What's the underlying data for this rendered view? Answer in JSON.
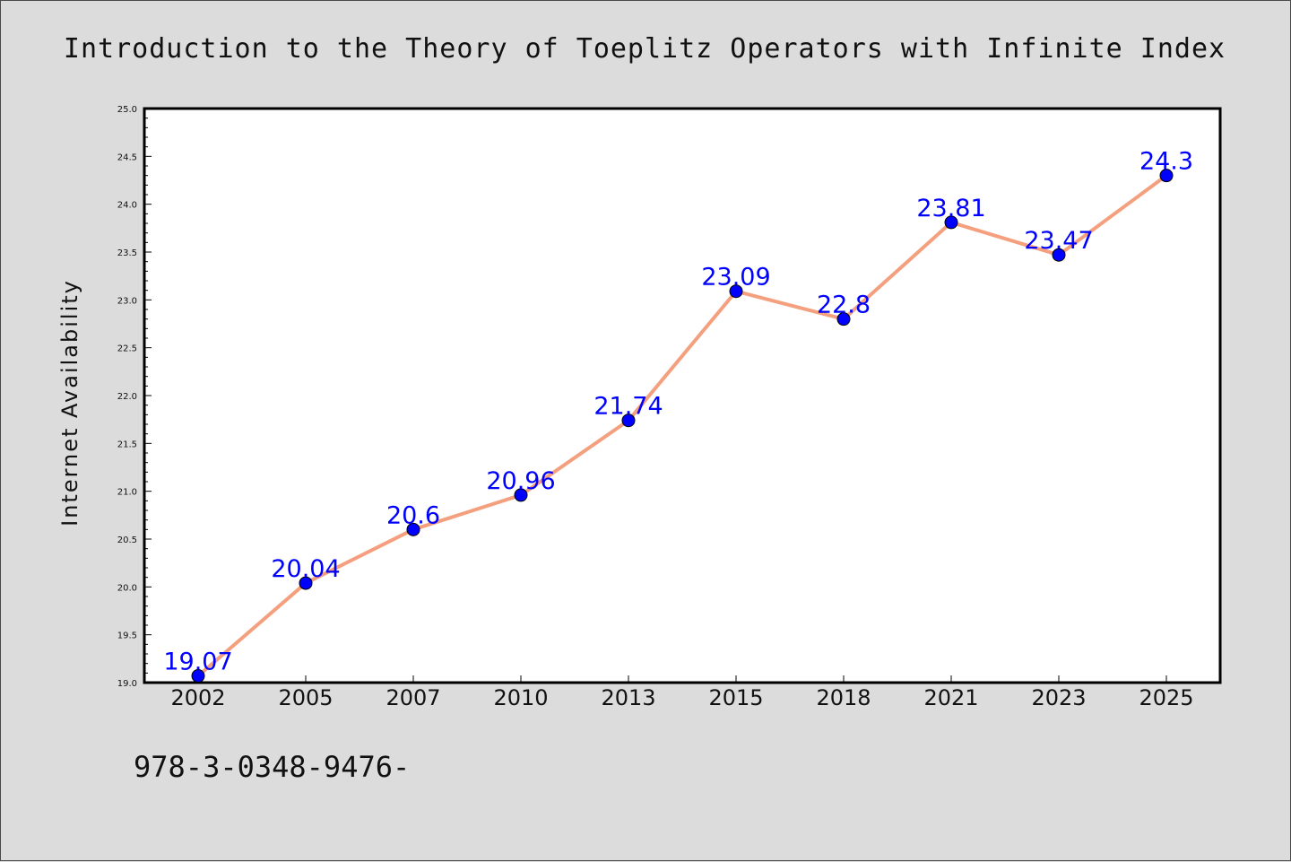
{
  "chart_data": {
    "type": "line",
    "title": "Introduction to the Theory of Toeplitz Operators with Infinite Index",
    "xlabel": "",
    "ylabel": "Internet Availability",
    "categories": [
      "2002",
      "2005",
      "2007",
      "2010",
      "2013",
      "2015",
      "2018",
      "2021",
      "2023",
      "2025"
    ],
    "series": [
      {
        "values": [
          19.07,
          20.04,
          20.6,
          20.96,
          21.74,
          23.09,
          22.8,
          23.81,
          23.47,
          24.3
        ],
        "labels": [
          "19.07",
          "20.04",
          "20.6",
          "20.96",
          "21.74",
          "23.09",
          "22.8",
          "23.81",
          "23.47",
          "24.3"
        ]
      }
    ],
    "ylim": [
      19.0,
      25.0
    ],
    "yticks": [
      "19.0",
      "19.5",
      "20.0",
      "20.5",
      "21.0",
      "21.5",
      "22.0",
      "22.5",
      "23.0",
      "23.5",
      "24.0",
      "24.5",
      "25.0"
    ],
    "grid": false,
    "legend": "none",
    "colors": {
      "line": "#f4a07e",
      "marker": "#0000ff",
      "label": "#0000ff",
      "background": "#dcdcdc",
      "plot_area": "#ffffff"
    }
  },
  "footer": {
    "isbn_text": "978-3-0348-9476-"
  }
}
